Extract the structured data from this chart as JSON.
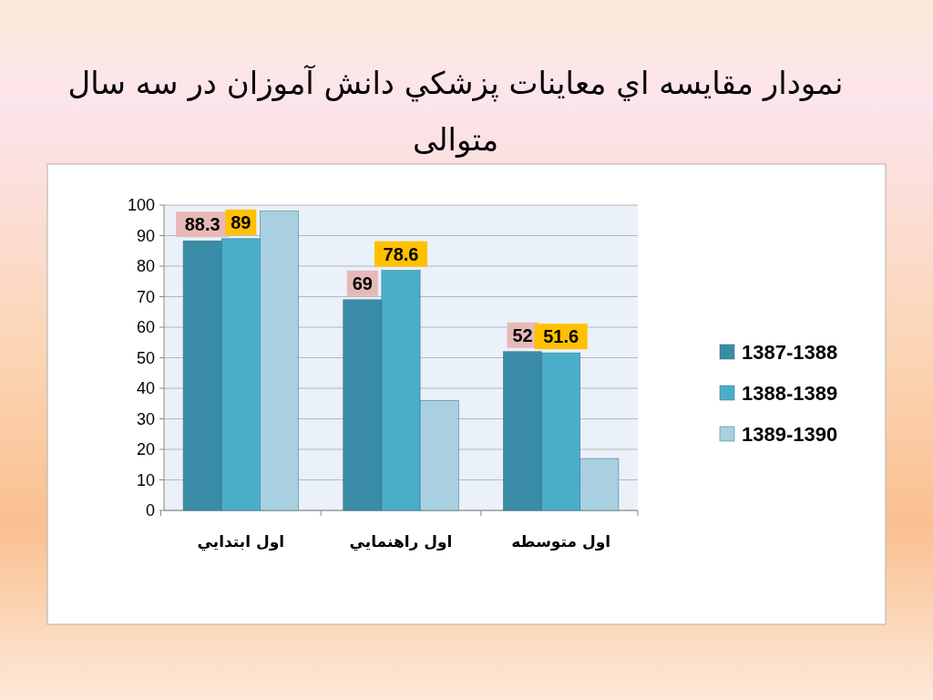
{
  "chart_data": {
    "type": "bar",
    "title": "نمودار مقايسه اي معاينات پزشكي دانش آموزان در سه سال متوالی",
    "categories": [
      "اول ابتدايي",
      "اول راهنمايي",
      "اول متوسطه"
    ],
    "series": [
      {
        "name": "1387-1388",
        "color": "#3a8ca6",
        "values": [
          88.3,
          69,
          52
        ],
        "value_labels": [
          "88.3",
          "69",
          "52"
        ]
      },
      {
        "name": "1388-1389",
        "color": "#4aaecb",
        "values": [
          89,
          78.6,
          51.6
        ],
        "value_labels": [
          "89",
          "78.6",
          "51.6"
        ]
      },
      {
        "name": "1389-1390",
        "color": "#a8d0e0",
        "values": [
          98,
          36,
          17
        ],
        "value_labels": [
          null,
          null,
          null
        ]
      }
    ],
    "ylim": [
      0,
      100
    ],
    "yticks": [
      0,
      10,
      20,
      30,
      40,
      50,
      60,
      70,
      80,
      90,
      100
    ],
    "grid": "y",
    "legend": "right"
  }
}
